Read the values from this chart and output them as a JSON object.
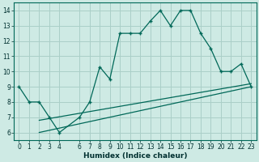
{
  "xlabel": "Humidex (Indice chaleur)",
  "bg_color": "#ceeae4",
  "grid_color": "#aacfc8",
  "line_color": "#006858",
  "xlim": [
    -0.5,
    23.5
  ],
  "ylim": [
    5.5,
    14.5
  ],
  "xticks": [
    0,
    1,
    2,
    3,
    4,
    6,
    7,
    8,
    9,
    10,
    11,
    12,
    13,
    14,
    15,
    16,
    17,
    18,
    19,
    20,
    21,
    22,
    23
  ],
  "yticks": [
    6,
    7,
    8,
    9,
    10,
    11,
    12,
    13,
    14
  ],
  "main_x": [
    0,
    1,
    2,
    3,
    4,
    6,
    7,
    8,
    9,
    10,
    11,
    12,
    13,
    14,
    15,
    16,
    17,
    18,
    19,
    20,
    21,
    22,
    23
  ],
  "main_y": [
    9,
    8,
    8,
    7,
    6,
    7,
    8,
    10.3,
    9.5,
    12.5,
    12.5,
    12.5,
    13.3,
    14,
    13.0,
    14,
    14,
    12.5,
    11.5,
    10,
    10,
    10.5,
    9
  ],
  "line2_x": [
    2,
    23
  ],
  "line2_y": [
    6.0,
    9.0
  ],
  "line3_x": [
    2,
    23
  ],
  "line3_y": [
    6.8,
    9.2
  ],
  "xlabel_fontsize": 6.5,
  "tick_fontsize": 5.5
}
